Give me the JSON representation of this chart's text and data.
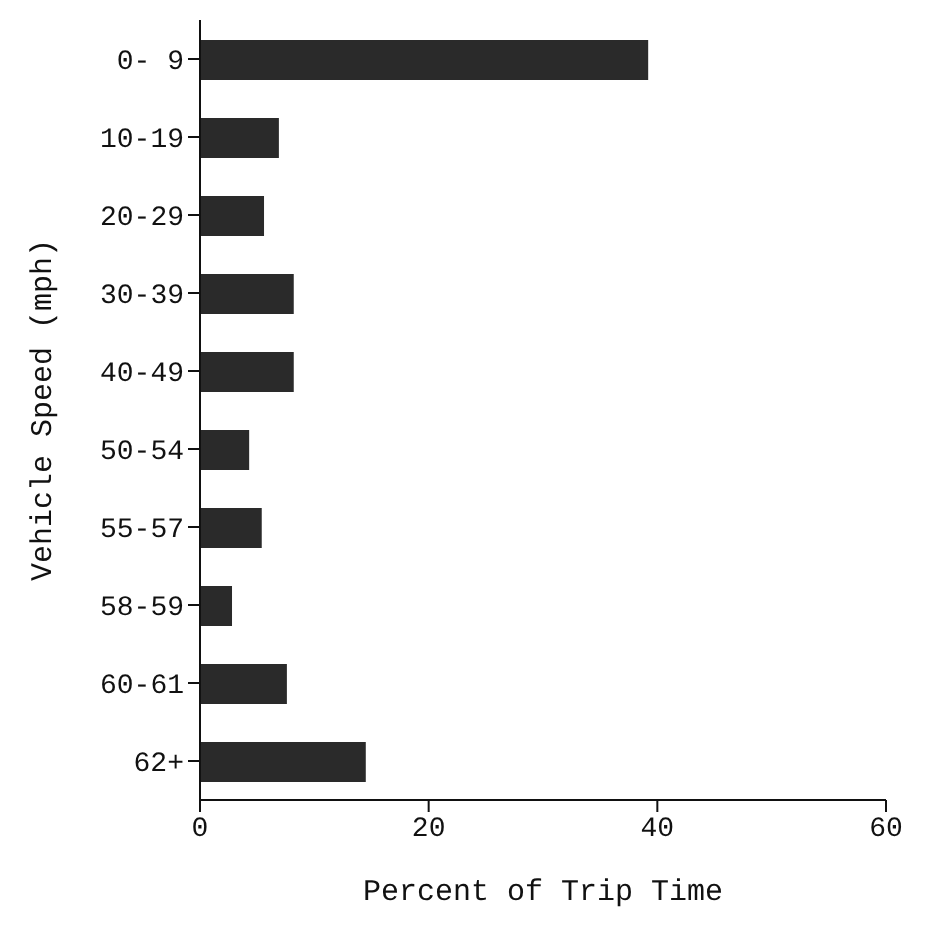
{
  "chart_data": {
    "type": "bar",
    "orientation": "horizontal",
    "xlabel": "Percent of Trip Time",
    "ylabel": "Vehicle Speed (mph)",
    "categories": [
      "0- 9",
      "10-19",
      "20-29",
      "30-39",
      "40-49",
      "50-54",
      "55-57",
      "58-59",
      "60-61",
      "62+"
    ],
    "values": [
      39.2,
      6.9,
      5.6,
      8.2,
      8.2,
      4.3,
      5.4,
      2.8,
      7.6,
      14.5
    ],
    "color": "#2a2a2a",
    "xlim": [
      0,
      60
    ],
    "xticks": [
      0,
      20,
      40,
      60
    ]
  }
}
